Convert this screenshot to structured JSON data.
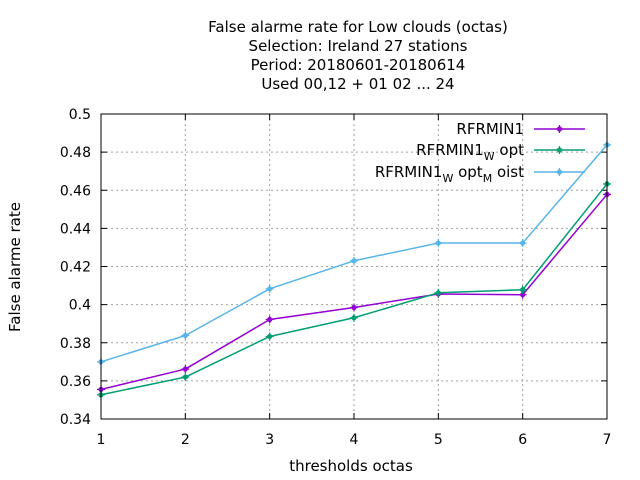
{
  "chart_data": {
    "type": "line",
    "title_lines": [
      "False alarme rate  for Low clouds (octas)",
      "Selection: Ireland      27 stations",
      "Period: 20180601-20180614",
      "Used  00,12  + 01 02 ... 24"
    ],
    "xlabel": "thresholds octas",
    "ylabel": "False alarme rate",
    "x": [
      1,
      2,
      3,
      4,
      5,
      6,
      7
    ],
    "xlim": [
      1,
      7
    ],
    "ylim": [
      0.34,
      0.5
    ],
    "yticks": [
      "0.34",
      "0.36",
      "0.38",
      "0.4",
      "0.42",
      "0.44",
      "0.46",
      "0.48",
      "0.5"
    ],
    "xticks": [
      "1",
      "2",
      "3",
      "4",
      "5",
      "6",
      "7"
    ],
    "grid": true,
    "legend_position": "top-right",
    "series": [
      {
        "name": "RFRMIN1",
        "legend_parts": [
          {
            "text": "RFRMIN1",
            "sub": false
          }
        ],
        "color": "#9400d3",
        "values": [
          0.3555,
          0.3662,
          0.3922,
          0.3985,
          0.4056,
          0.4052,
          0.4578
        ]
      },
      {
        "name": "RFRMIN1_W opt",
        "legend_parts": [
          {
            "text": "RFRMIN1",
            "sub": false
          },
          {
            "text": "W",
            "sub": true
          },
          {
            "text": " opt",
            "sub": false
          }
        ],
        "color": "#009e73",
        "values": [
          0.3527,
          0.362,
          0.3833,
          0.3931,
          0.4062,
          0.4078,
          0.4633
        ]
      },
      {
        "name": "RFRMIN1_W opt_M oist",
        "legend_parts": [
          {
            "text": "RFRMIN1",
            "sub": false
          },
          {
            "text": "W",
            "sub": true
          },
          {
            "text": " opt",
            "sub": false
          },
          {
            "text": "M",
            "sub": true
          },
          {
            "text": " oist",
            "sub": false
          }
        ],
        "color": "#56b4e9",
        "values": [
          0.37,
          0.3838,
          0.4083,
          0.423,
          0.4323,
          0.4323,
          0.4838
        ]
      }
    ]
  }
}
